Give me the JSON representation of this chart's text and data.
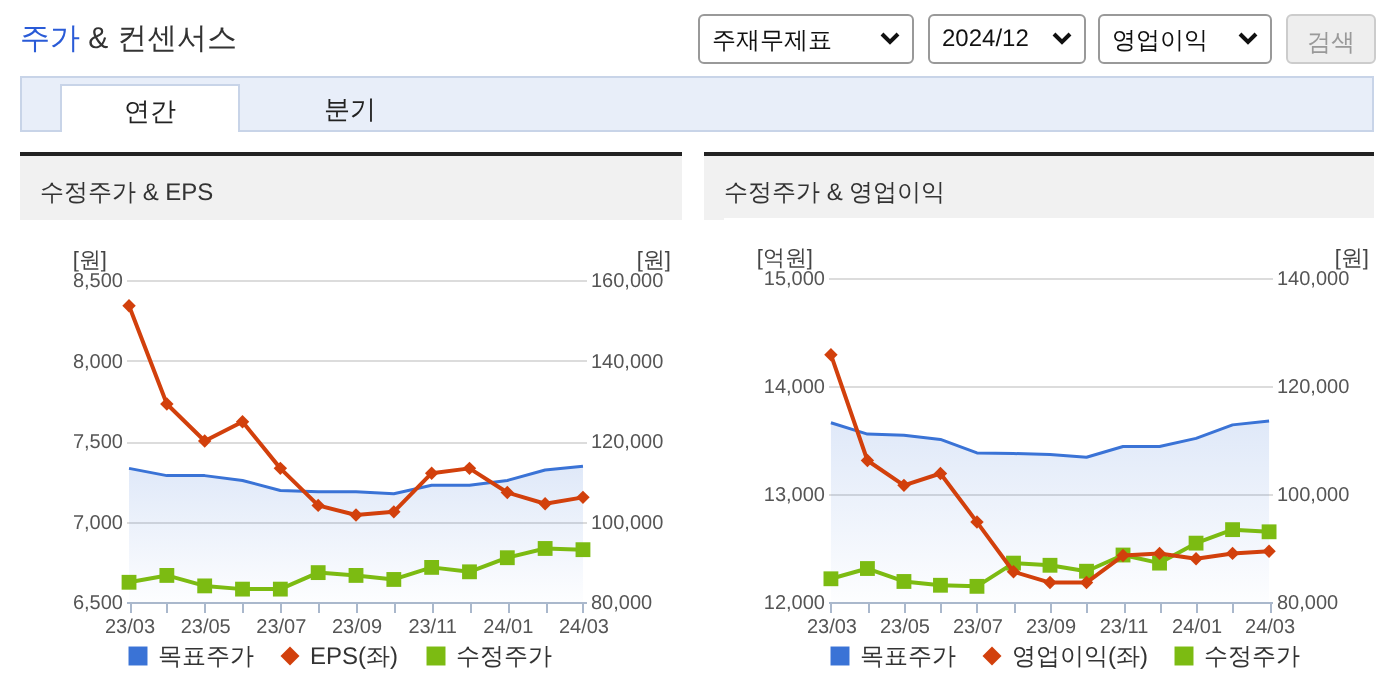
{
  "chart_data": [
    {
      "type": "other",
      "title": "주가 & 컨센서스",
      "annotations": [
        "주재무제표",
        "2024/12",
        "영업이익",
        "검색",
        "연간",
        "분기"
      ]
    },
    {
      "type": "line",
      "title": "수정주가 & EPS",
      "ylabel": "[원]",
      "y2label": "[원]",
      "categories": [
        "23/03",
        null,
        "23/05",
        null,
        "23/07",
        null,
        "23/09",
        null,
        "23/11",
        null,
        "24/01",
        null,
        "24/03"
      ],
      "ylim": [
        6500,
        8500
      ],
      "yticks": [
        {
          "value": 6500,
          "label": "6,500"
        },
        {
          "value": 7000,
          "label": "7,000"
        },
        {
          "value": 7500,
          "label": "7,500"
        },
        {
          "value": 8000,
          "label": "8,000"
        },
        {
          "value": 8500,
          "label": "8,500"
        }
      ],
      "y2lim": [
        80000,
        160000
      ],
      "y2ticks": [
        {
          "value": 80000,
          "label": "80,000"
        },
        {
          "value": 100000,
          "label": "100,000"
        },
        {
          "value": 120000,
          "label": "120,000"
        },
        {
          "value": 140000,
          "label": "140,000"
        },
        {
          "value": 160000,
          "label": "160,000"
        }
      ],
      "grid": "y",
      "legend": "bottom",
      "series": [
        {
          "name": "목표주가",
          "type": "area",
          "axis": "y2",
          "color": "#3a73d6",
          "marker": "none",
          "values": [
            113200,
            111400,
            111400,
            110200,
            107700,
            107400,
            107400,
            106900,
            109000,
            109000,
            110200,
            112800,
            113700
          ]
        },
        {
          "name": "EPS(좌)",
          "type": "line",
          "color": "#d2400c",
          "marker": "diamond",
          "values": [
            8340,
            7730,
            7500,
            7620,
            7330,
            7100,
            7040,
            7060,
            7300,
            7330,
            7180,
            7110,
            7150
          ]
        },
        {
          "name": "수정주가",
          "type": "line",
          "axis": "y2",
          "color": "#7cbb12",
          "marker": "square",
          "values": [
            84900,
            86600,
            84000,
            83200,
            83200,
            87300,
            86600,
            85600,
            88600,
            87500,
            91000,
            93300,
            93000
          ]
        }
      ]
    },
    {
      "type": "line",
      "title": "수정주가 & 영업이익",
      "ylabel": "[억원]",
      "y2label": "[원]",
      "categories": [
        "23/03",
        null,
        "23/05",
        null,
        "23/07",
        null,
        "23/09",
        null,
        "23/11",
        null,
        "24/01",
        null,
        "24/03"
      ],
      "ylim": [
        12000,
        15000
      ],
      "yticks": [
        {
          "value": 12000,
          "label": "12,000"
        },
        {
          "value": 13000,
          "label": "13,000"
        },
        {
          "value": 14000,
          "label": "14,000"
        },
        {
          "value": 15000,
          "label": "15,000"
        }
      ],
      "y2lim": [
        80000,
        140000
      ],
      "y2ticks": [
        {
          "value": 80000,
          "label": "80,000"
        },
        {
          "value": 100000,
          "label": "100,000"
        },
        {
          "value": 120000,
          "label": "120,000"
        },
        {
          "value": 140000,
          "label": "140,000"
        }
      ],
      "grid": "y",
      "legend": "bottom",
      "series": [
        {
          "name": "목표주가",
          "type": "area",
          "axis": "y2",
          "color": "#3a73d6",
          "marker": "none",
          "values": [
            113200,
            111100,
            110900,
            110100,
            107600,
            107500,
            107300,
            106800,
            108800,
            108800,
            110300,
            112800,
            113500
          ]
        },
        {
          "name": "영업이익(좌)",
          "type": "line",
          "color": "#d2400c",
          "marker": "diamond",
          "values": [
            14290,
            13310,
            13080,
            13190,
            12740,
            12280,
            12180,
            12180,
            12430,
            12450,
            12400,
            12450,
            12470
          ]
        },
        {
          "name": "수정주가",
          "type": "line",
          "axis": "y2",
          "color": "#7cbb12",
          "marker": "square",
          "values": [
            84300,
            86200,
            83800,
            83100,
            82900,
            87200,
            86800,
            85700,
            88700,
            87200,
            90900,
            93400,
            93000
          ]
        }
      ]
    }
  ]
}
